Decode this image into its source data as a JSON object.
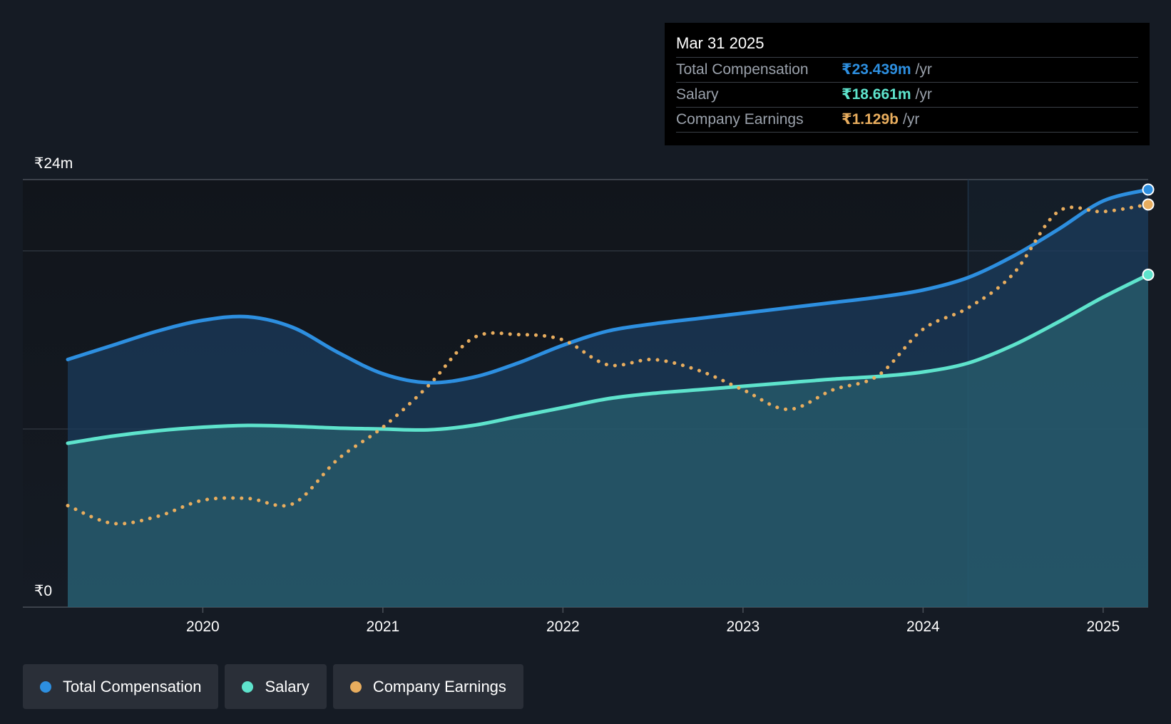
{
  "tooltip": {
    "date": "Mar 31 2025",
    "rows": [
      {
        "label": "Total Compensation",
        "value": "₹23.439m",
        "unit": "/yr"
      },
      {
        "label": "Salary",
        "value": "₹18.661m",
        "unit": "/yr"
      },
      {
        "label": "Company Earnings",
        "value": "₹1.129b",
        "unit": "/yr"
      }
    ]
  },
  "legend": [
    {
      "label": "Total Compensation",
      "color": "#2d8fe0"
    },
    {
      "label": "Salary",
      "color": "#5ee3cc"
    },
    {
      "label": "Company Earnings",
      "color": "#e8ad5e"
    }
  ],
  "chart_data": {
    "type": "area",
    "ylabel_top": "₹24m",
    "ylabel_bottom": "₹0",
    "ylim": [
      0,
      24
    ],
    "xlim": [
      2019.25,
      2025.25
    ],
    "x_ticks": [
      "2020",
      "2021",
      "2022",
      "2023",
      "2024",
      "2025"
    ],
    "x_tick_values": [
      2020,
      2021,
      2022,
      2023,
      2024,
      2025
    ],
    "grid": true,
    "highlight_from": 2024.25,
    "series": [
      {
        "name": "Total Compensation",
        "color": "#2d8fe0",
        "style": "solid-area",
        "points": [
          [
            2019.25,
            13.9
          ],
          [
            2019.5,
            14.7
          ],
          [
            2019.75,
            15.5
          ],
          [
            2020.0,
            16.1
          ],
          [
            2020.25,
            16.3
          ],
          [
            2020.5,
            15.7
          ],
          [
            2020.75,
            14.3
          ],
          [
            2021.0,
            13.1
          ],
          [
            2021.25,
            12.6
          ],
          [
            2021.5,
            12.9
          ],
          [
            2021.75,
            13.7
          ],
          [
            2022.0,
            14.7
          ],
          [
            2022.25,
            15.5
          ],
          [
            2022.5,
            15.9
          ],
          [
            2022.75,
            16.2
          ],
          [
            2023.0,
            16.5
          ],
          [
            2023.25,
            16.8
          ],
          [
            2023.5,
            17.1
          ],
          [
            2023.75,
            17.4
          ],
          [
            2024.0,
            17.8
          ],
          [
            2024.25,
            18.5
          ],
          [
            2024.5,
            19.7
          ],
          [
            2024.75,
            21.2
          ],
          [
            2025.0,
            22.8
          ],
          [
            2025.25,
            23.439
          ]
        ]
      },
      {
        "name": "Salary",
        "color": "#5ee3cc",
        "style": "solid-area",
        "points": [
          [
            2019.25,
            9.2
          ],
          [
            2019.5,
            9.6
          ],
          [
            2019.75,
            9.9
          ],
          [
            2020.0,
            10.1
          ],
          [
            2020.25,
            10.2
          ],
          [
            2020.5,
            10.15
          ],
          [
            2020.75,
            10.05
          ],
          [
            2021.0,
            10.0
          ],
          [
            2021.25,
            9.95
          ],
          [
            2021.5,
            10.2
          ],
          [
            2021.75,
            10.7
          ],
          [
            2022.0,
            11.2
          ],
          [
            2022.25,
            11.7
          ],
          [
            2022.5,
            12.0
          ],
          [
            2022.75,
            12.2
          ],
          [
            2023.0,
            12.4
          ],
          [
            2023.25,
            12.6
          ],
          [
            2023.5,
            12.8
          ],
          [
            2023.75,
            12.95
          ],
          [
            2024.0,
            13.2
          ],
          [
            2024.25,
            13.7
          ],
          [
            2024.5,
            14.7
          ],
          [
            2024.75,
            16.0
          ],
          [
            2025.0,
            17.4
          ],
          [
            2025.25,
            18.661
          ]
        ]
      },
      {
        "name": "Company Earnings",
        "color": "#e8ad5e",
        "style": "dotted",
        "points": [
          [
            2019.25,
            5.7
          ],
          [
            2019.5,
            4.7
          ],
          [
            2019.75,
            5.1
          ],
          [
            2020.0,
            6.0
          ],
          [
            2020.25,
            6.1
          ],
          [
            2020.5,
            5.8
          ],
          [
            2020.75,
            8.3
          ],
          [
            2021.0,
            10.1
          ],
          [
            2021.25,
            12.4
          ],
          [
            2021.5,
            15.1
          ],
          [
            2021.75,
            15.3
          ],
          [
            2022.0,
            15.0
          ],
          [
            2022.25,
            13.6
          ],
          [
            2022.5,
            13.9
          ],
          [
            2022.75,
            13.3
          ],
          [
            2023.0,
            12.2
          ],
          [
            2023.25,
            11.1
          ],
          [
            2023.5,
            12.2
          ],
          [
            2023.75,
            13.0
          ],
          [
            2024.0,
            15.6
          ],
          [
            2024.25,
            16.8
          ],
          [
            2024.5,
            18.7
          ],
          [
            2024.75,
            22.2
          ],
          [
            2025.0,
            22.2
          ],
          [
            2025.25,
            22.6
          ]
        ]
      }
    ]
  }
}
